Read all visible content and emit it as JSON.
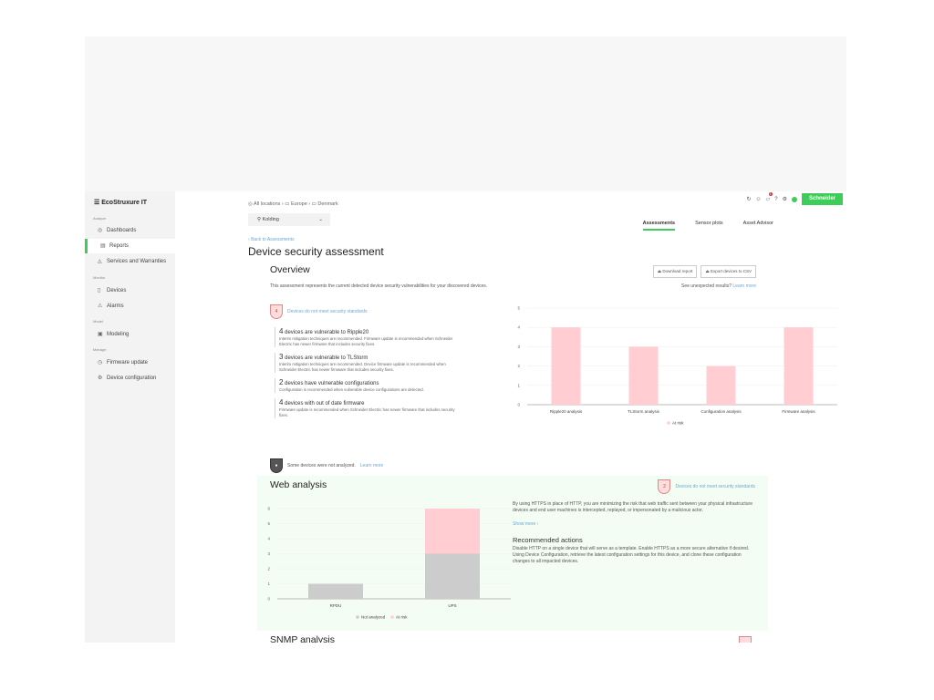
{
  "sidebar": {
    "app_name": "EcoStruxure IT",
    "sections": [
      {
        "label": "Analyze",
        "items": [
          {
            "label": "Dashboards",
            "icon": "eye-icon"
          },
          {
            "label": "Reports",
            "icon": "report-icon",
            "active": true
          },
          {
            "label": "Services and Warranties",
            "icon": "service-icon"
          }
        ]
      },
      {
        "label": "Monitor",
        "items": [
          {
            "label": "Devices",
            "icon": "device-icon"
          },
          {
            "label": "Alarms",
            "icon": "alarm-icon"
          }
        ]
      },
      {
        "label": "Model",
        "items": [
          {
            "label": "Modeling",
            "icon": "modeling-icon"
          }
        ]
      },
      {
        "label": "Manage",
        "items": [
          {
            "label": "Firmware update",
            "icon": "firmware-icon"
          },
          {
            "label": "Device configuration",
            "icon": "config-icon"
          }
        ]
      }
    ]
  },
  "header": {
    "breadcrumb": [
      "All locations",
      "Europe",
      "Denmark"
    ],
    "location": "Kolding",
    "back": "Back to Assessments",
    "title": "Device security assessment",
    "tabs": [
      "Assessments",
      "Sensor plots",
      "Asset Advisor"
    ],
    "notification_count": "1",
    "brand": "Schneider Electric",
    "brand_color": "#3dcd58"
  },
  "overview": {
    "title": "Overview",
    "download": "Download report",
    "export": "Export devices to CSV",
    "unexpected": "See unexpected results?",
    "learn_more": "Learn more",
    "description": "This assessment represents the current detected device security vulnerabilities for your discovered devices.",
    "badge_count": "4",
    "badge_text": "Devices do not meet security standards",
    "items": [
      {
        "count": "4",
        "title": "devices are vulnerable to Ripple20",
        "desc": "Interim mitigation techniques are recommended. Firmware update is recommended when Schneider Electric has newer firmware that includes security fixes."
      },
      {
        "count": "3",
        "title": "devices are vulnerable to TLStorm",
        "desc": "Interim mitigation techniques are recommended. Device firmware update is recommended when Schneider Electric has newer firmware that includes security fixes."
      },
      {
        "count": "2",
        "title": "devices have vulnerable configurations",
        "desc": "Configuration is recommended when vulnerable device configurations are detected."
      },
      {
        "count": "4",
        "title": "devices with out of date firmware",
        "desc": "Firmware update is recommended when Schneider Electric has newer firmware that includes security fixes."
      }
    ],
    "not_analyzed": "Some devices were not analyzed.",
    "not_analyzed_link": "Learn more"
  },
  "web": {
    "title": "Web analysis",
    "badge_count": "2",
    "badge_text": "Devices do not meet security standards",
    "desc": "By using HTTPS in place of HTTP, you are minimizing the risk that web traffic sent between your physical infrastructure devices and end user machines is intercepted, replayed, or impersonated by a malicious actor.",
    "show_more": "Show more",
    "actions_title": "Recommended actions",
    "actions": "Disable HTTP on a single device that will serve as a template. Enable HTTPS as a more secure alternative if desired. Using Device Configuration, retrieve the latest configuration settings for this device, and clone these configuration changes to all impacted devices."
  },
  "snmp": {
    "title": "SNMP analysis"
  },
  "chart_data": [
    {
      "type": "bar",
      "categories": [
        "Ripple20 analysis",
        "TLStorm analysis",
        "Configuration analysis",
        "Firmware analysis"
      ],
      "series": [
        {
          "name": "At risk",
          "values": [
            4,
            3,
            2,
            4
          ],
          "color": "#ffcdd2"
        }
      ],
      "ylim": [
        0,
        5
      ],
      "yticks": [
        0,
        1,
        2,
        3,
        4,
        5
      ],
      "grid": true,
      "legend": "bottom"
    },
    {
      "type": "bar",
      "stacked": true,
      "categories": [
        "RPDU",
        "UPS"
      ],
      "series": [
        {
          "name": "Not analyzed",
          "values": [
            1,
            3
          ],
          "color": "#cccccc"
        },
        {
          "name": "At risk",
          "values": [
            0,
            3
          ],
          "color": "#ffcdd2"
        }
      ],
      "ylim": [
        0,
        6
      ],
      "yticks": [
        0,
        1,
        2,
        3,
        4,
        5,
        6
      ],
      "grid": true,
      "legend": "bottom"
    }
  ]
}
